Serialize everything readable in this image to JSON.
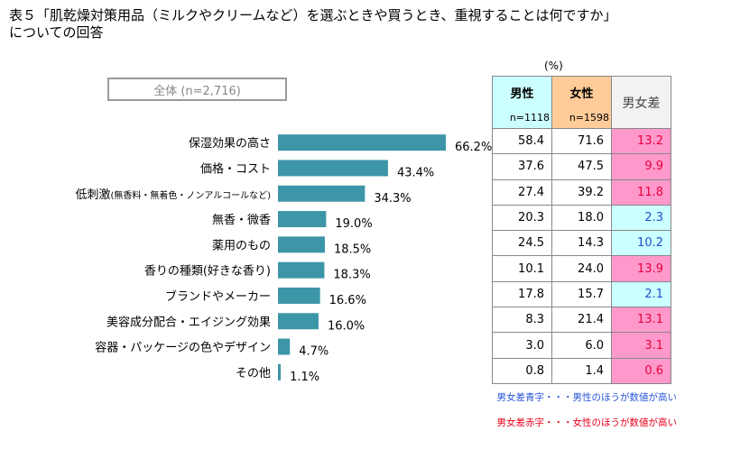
{
  "title": {
    "line1": "表５「肌乾燥対策用品（ミルクやクリームなど）を選ぶときや買うとき、重視することは何ですか」",
    "line2": "についての回答"
  },
  "total_label": "全体 (n=2,716)",
  "unit": "(%)",
  "table": {
    "headers": {
      "male": "男性",
      "male_n": "n=1118",
      "female": "女性",
      "female_n": "n=1598",
      "diff": "男女差"
    }
  },
  "notes": {
    "blue": "男女差青字・・・男性のほうが数値が高い",
    "red": "男女差赤字・・・女性のほうが数値が高い"
  },
  "colors": {
    "bar": "#3d96a8",
    "diff_female_bg": "#ff99cc",
    "diff_male_bg": "#ccffff",
    "diff_female_text": "#e8003a",
    "diff_male_text": "#1f4fd0"
  },
  "chart_data": {
    "type": "bar",
    "orientation": "horizontal",
    "title": "全体 (n=2,716)",
    "categories": [
      "保湿効果の高さ",
      "価格・コスト",
      "低刺激",
      "無香・微香",
      "薬用のもの",
      "香りの種類(好きな香り)",
      "ブランドやメーカー",
      "美容成分配合・エイジング効果",
      "容器・パッケージの色やデザイン",
      "その他"
    ],
    "category_notes": [
      "",
      "",
      "(無香料・無着色・ノンアルコールなど)",
      "",
      "",
      "",
      "",
      "",
      "",
      ""
    ],
    "values": [
      66.2,
      43.4,
      34.3,
      19.0,
      18.5,
      18.3,
      16.6,
      16.0,
      4.7,
      1.1
    ],
    "value_labels": [
      "66.2%",
      "43.4%",
      "34.3%",
      "19.0%",
      "18.5%",
      "18.3%",
      "16.6%",
      "16.0%",
      "4.7%",
      "1.1%"
    ],
    "male": [
      "58.4",
      "37.6",
      "27.4",
      "20.3",
      "24.5",
      "10.1",
      "17.8",
      "8.3",
      "3.0",
      "0.8"
    ],
    "female": [
      "71.6",
      "47.5",
      "39.2",
      "18.0",
      "14.3",
      "24.0",
      "15.7",
      "21.4",
      "6.0",
      "1.4"
    ],
    "diff": [
      "13.2",
      "9.9",
      "11.8",
      "2.3",
      "10.2",
      "13.9",
      "2.1",
      "13.1",
      "3.1",
      "0.6"
    ],
    "diff_higher": [
      "female",
      "female",
      "female",
      "male",
      "male",
      "female",
      "male",
      "female",
      "female",
      "female"
    ],
    "xlim": [
      0,
      66.2
    ]
  }
}
